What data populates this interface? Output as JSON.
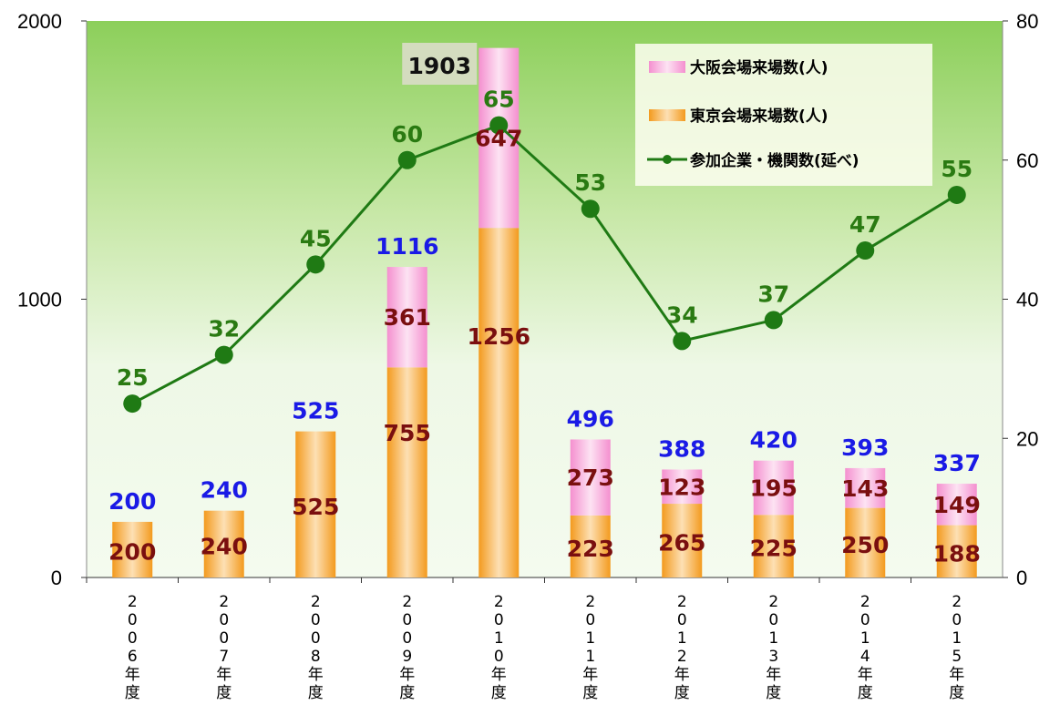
{
  "chart_data": {
    "type": "bar",
    "categories": [
      "2006年度",
      "2007年度",
      "2008年度",
      "2009年度",
      "2010年度",
      "2011年度",
      "2012年度",
      "2013年度",
      "2014年度",
      "2015年度"
    ],
    "series": [
      {
        "name": "大阪会場来場数(人)",
        "kind": "stacked-bar",
        "axis": "left",
        "values": [
          0,
          0,
          0,
          361,
          647,
          273,
          123,
          195,
          143,
          149
        ],
        "labels": [
          "",
          "",
          "",
          "361",
          "647",
          "273",
          "123",
          "195",
          "143",
          "149"
        ]
      },
      {
        "name": "東京会場来場数(人)",
        "kind": "stacked-bar",
        "axis": "left",
        "values": [
          200,
          240,
          525,
          755,
          1256,
          223,
          265,
          225,
          250,
          188
        ],
        "labels": [
          "200",
          "240",
          "525",
          "755",
          "1256",
          "223",
          "265",
          "225",
          "250",
          "188"
        ]
      },
      {
        "name": "参加企業・機関数(延べ)",
        "kind": "line",
        "axis": "right",
        "values": [
          25,
          32,
          45,
          60,
          65,
          53,
          34,
          37,
          47,
          55
        ],
        "labels": [
          "25",
          "32",
          "45",
          "60",
          "65",
          "53",
          "34",
          "37",
          "47",
          "55"
        ]
      }
    ],
    "totals": [
      200,
      240,
      525,
      1116,
      1903,
      496,
      388,
      420,
      393,
      337
    ],
    "total_labels": [
      "200",
      "240",
      "525",
      "1116",
      "",
      "496",
      "388",
      "420",
      "393",
      "337"
    ],
    "highlight_total": "1903",
    "ylim": [
      0,
      2000
    ],
    "y2lim": [
      0,
      80
    ],
    "yticks": [
      "0",
      "1000",
      "2000"
    ],
    "y2ticks": [
      "0",
      "20",
      "40",
      "60",
      "80"
    ],
    "legend_position": "top-right",
    "grid": false,
    "colors": {
      "osaka": "#f9a8d8",
      "tokyo": "#f6a234",
      "line": "#1f7a14",
      "total_label": "#1a1ae6",
      "inner_label": "#7a0f0f",
      "line_label": "#2a7a12",
      "plot_bg_top": "#8ccf5a",
      "plot_bg_bottom": "#f4fbef"
    }
  }
}
